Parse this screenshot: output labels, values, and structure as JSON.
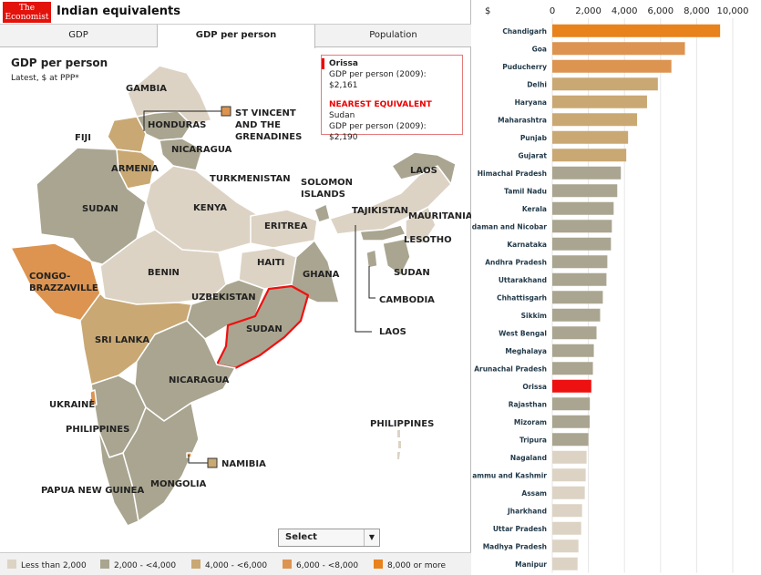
{
  "header": {
    "logo_line1": "The",
    "logo_line2": "Economist",
    "title": "Indian equivalents"
  },
  "tabs": [
    {
      "label": "GDP"
    },
    {
      "label": "GDP per person"
    },
    {
      "label": "Population"
    }
  ],
  "map": {
    "title": "GDP per person",
    "subtitle": "Latest, $ at PPP*",
    "info": {
      "selected_state": "Orissa",
      "selected_value": "GDP per person (2009): $2,161",
      "nearest_heading": "NEAREST EQUIVALENT",
      "nearest_country": "Sudan",
      "nearest_value": "GDP per person (2009): $2,190"
    },
    "labels": [
      "GAMBIA",
      "HONDURAS",
      "ST VINCENT",
      "AND THE",
      "GRENADINES",
      "FIJI",
      "NICARAGUA",
      "ARMENIA",
      "TURKMENISTAN",
      "SOLOMON",
      "ISLANDS",
      "LAOS",
      "SUDAN",
      "KENYA",
      "TAJIKISTAN",
      "MAURITANIA",
      "ERITREA",
      "LESOTHO",
      "CONGO-",
      "BRAZZAVILLE",
      "HAITI",
      "BENIN",
      "GHANA",
      "SUDAN",
      "UZBEKISTAN",
      "CAMBODIA",
      "SUDAN",
      "LAOS",
      "SRI LANKA",
      "NICARAGUA",
      "UKRAINE",
      "PHILIPPINES",
      "PHILIPPINES",
      "NAMIBIA",
      "MONGOLIA",
      "PAPUA NEW GUINEA"
    ],
    "select_label": "Select"
  },
  "legend": [
    {
      "label": "Less than 2,000",
      "color": "#dcd3c4"
    },
    {
      "label": "2,000 - <4,000",
      "color": "#a9a590"
    },
    {
      "label": "4,000 - <6,000",
      "color": "#c9a873"
    },
    {
      "label": "6,000 - <8,000",
      "color": "#dc9450"
    },
    {
      "label": "8,000 or more",
      "color": "#e8821c"
    }
  ],
  "colors": {
    "highlight": "#ee1111"
  },
  "chart_data": {
    "type": "bar",
    "orientation": "horizontal",
    "unit_label": "$",
    "xlim": [
      0,
      10000
    ],
    "xticks": [
      "0",
      "2,000",
      "4,000",
      "6,000",
      "8,000",
      "10,000"
    ],
    "highlight": "Orissa",
    "categories": [
      "Chandigarh",
      "Goa",
      "Puducherry",
      "Delhi",
      "Haryana",
      "Maharashtra",
      "Punjab",
      "Gujarat",
      "Himachal Pradesh",
      "Tamil Nadu",
      "Kerala",
      "Andaman and Nicobar",
      "Karnataka",
      "Andhra Pradesh",
      "Uttarakhand",
      "Chhattisgarh",
      "Sikkim",
      "West Bengal",
      "Meghalaya",
      "Arunachal Pradesh",
      "Orissa",
      "Rajasthan",
      "Mizoram",
      "Tripura",
      "Nagaland",
      "Jammu and Kashmir",
      "Assam",
      "Jharkhand",
      "Uttar Pradesh",
      "Madhya Pradesh",
      "Manipur"
    ],
    "values": [
      9300,
      7350,
      6600,
      5850,
      5250,
      4700,
      4200,
      4100,
      3800,
      3600,
      3400,
      3300,
      3250,
      3050,
      3000,
      2800,
      2650,
      2450,
      2300,
      2250,
      2161,
      2080,
      2070,
      2000,
      1900,
      1850,
      1800,
      1650,
      1600,
      1450,
      1400
    ],
    "colors": [
      "#e8821c",
      "#dc9450",
      "#dc9450",
      "#c9a873",
      "#c9a873",
      "#c9a873",
      "#c9a873",
      "#c9a873",
      "#a9a590",
      "#a9a590",
      "#a9a590",
      "#a9a590",
      "#a9a590",
      "#a9a590",
      "#a9a590",
      "#a9a590",
      "#a9a590",
      "#a9a590",
      "#a9a590",
      "#a9a590",
      "#ee1111",
      "#a9a590",
      "#a9a590",
      "#a9a590",
      "#dcd3c4",
      "#dcd3c4",
      "#dcd3c4",
      "#dcd3c4",
      "#dcd3c4",
      "#dcd3c4",
      "#dcd3c4"
    ]
  }
}
